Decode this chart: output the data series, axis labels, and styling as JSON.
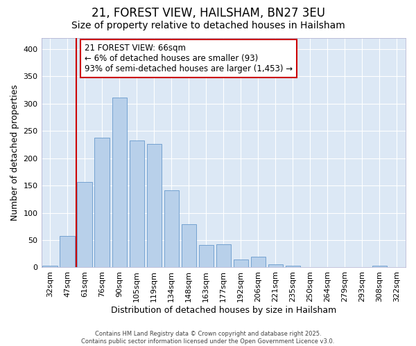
{
  "title": "21, FOREST VIEW, HAILSHAM, BN27 3EU",
  "subtitle": "Size of property relative to detached houses in Hailsham",
  "xlabel": "Distribution of detached houses by size in Hailsham",
  "ylabel": "Number of detached properties",
  "bar_labels": [
    "32sqm",
    "47sqm",
    "61sqm",
    "76sqm",
    "90sqm",
    "105sqm",
    "119sqm",
    "134sqm",
    "148sqm",
    "163sqm",
    "177sqm",
    "192sqm",
    "206sqm",
    "221sqm",
    "235sqm",
    "250sqm",
    "264sqm",
    "279sqm",
    "293sqm",
    "308sqm",
    "322sqm"
  ],
  "bar_values": [
    3,
    58,
    157,
    237,
    311,
    233,
    226,
    141,
    79,
    41,
    42,
    14,
    19,
    6,
    3,
    0,
    0,
    0,
    0,
    3,
    0
  ],
  "bar_color": "#b8d0ea",
  "bar_edge_color": "#6699cc",
  "vline_index": 2,
  "vline_color": "#cc0000",
  "annotation_text": "21 FOREST VIEW: 66sqm\n← 6% of detached houses are smaller (93)\n93% of semi-detached houses are larger (1,453) →",
  "annotation_box_color": "white",
  "annotation_box_edge": "#cc0000",
  "ylim": [
    0,
    420
  ],
  "plot_bg_color": "#dce8f5",
  "fig_bg_color": "#ffffff",
  "footer_text": "Contains HM Land Registry data © Crown copyright and database right 2025.\nContains public sector information licensed under the Open Government Licence v3.0.",
  "title_fontsize": 12,
  "subtitle_fontsize": 10,
  "xlabel_fontsize": 9,
  "ylabel_fontsize": 9,
  "tick_fontsize": 8,
  "annotation_fontsize": 8.5
}
